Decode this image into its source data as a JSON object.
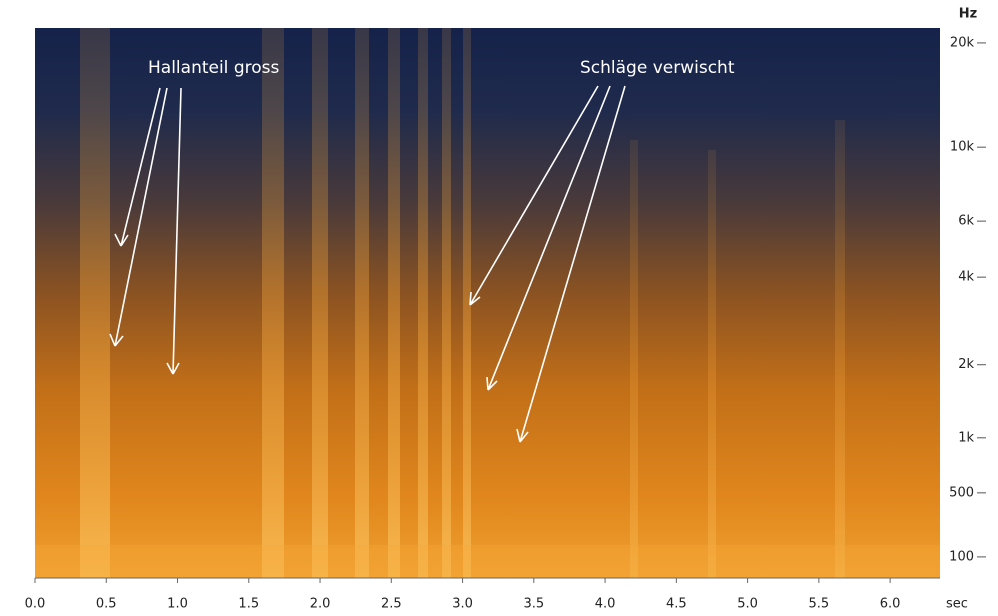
{
  "chart_data": {
    "type": "spectrogram",
    "xlabel": "sec",
    "ylabel": "Hz",
    "xlim": [
      0,
      6.35
    ],
    "xticks": [
      {
        "value": 0,
        "label": "0.0"
      },
      {
        "value": 0.5,
        "label": "0.5"
      },
      {
        "value": 1,
        "label": "1.0"
      },
      {
        "value": 1.5,
        "label": "1.5"
      },
      {
        "value": 2,
        "label": "2.0"
      },
      {
        "value": 2.5,
        "label": "2.5"
      },
      {
        "value": 3,
        "label": "3.0"
      },
      {
        "value": 3.5,
        "label": "3.5"
      },
      {
        "value": 4,
        "label": "4.0"
      },
      {
        "value": 4.5,
        "label": "4.5"
      },
      {
        "value": 5,
        "label": "5.0"
      },
      {
        "value": 5.5,
        "label": "5.5"
      },
      {
        "value": 6,
        "label": "6.0"
      }
    ],
    "yscale": "mel",
    "ylim": [
      0,
      22050
    ],
    "yticks": [
      100,
      500,
      {
        "value": 1000,
        "label": "1k"
      },
      {
        "value": 2000,
        "label": "2k"
      },
      {
        "value": 4000,
        "label": "4k"
      },
      {
        "value": 6000,
        "label": "6k"
      },
      {
        "value": 10000,
        "label": "10k"
      },
      {
        "value": 20000,
        "label": "20k"
      }
    ],
    "annotations": [
      {
        "text": "Hallanteil gross"
      },
      {
        "text": "Schläge verwischt"
      }
    ]
  }
}
